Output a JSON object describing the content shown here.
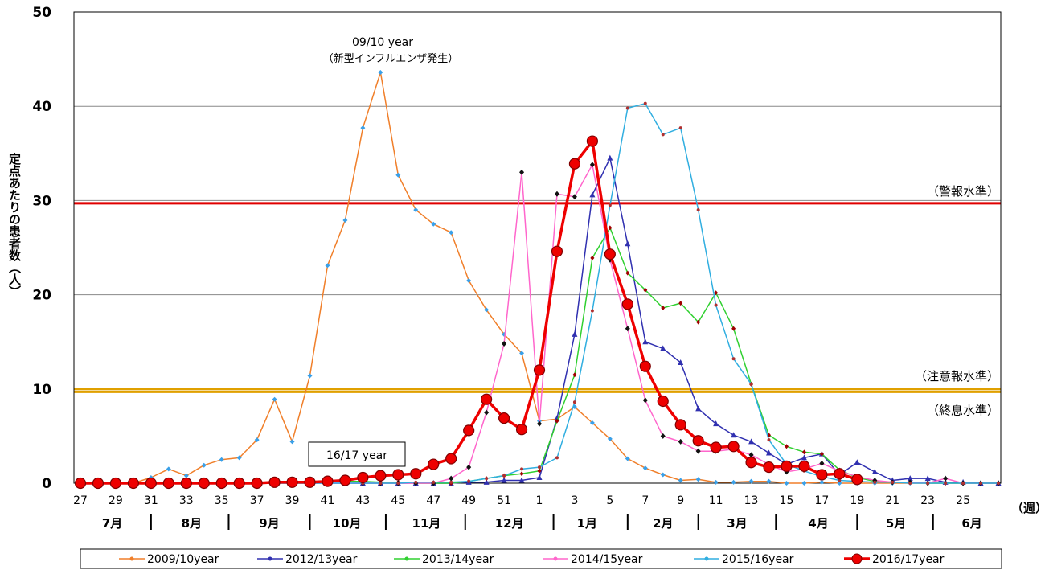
{
  "chart_data": {
    "type": "line",
    "ylabel": "定点あたりの患者数（人）",
    "xlabel": "",
    "x_unit_label": "（週）",
    "ylim": [
      0,
      50
    ],
    "yticks": [
      "0",
      "10",
      "20",
      "30",
      "40",
      "50"
    ],
    "x_ticks": [
      "27",
      "29",
      "31",
      "33",
      "35",
      "37",
      "39",
      "41",
      "43",
      "45",
      "47",
      "49",
      "51",
      "1",
      "3",
      "5",
      "7",
      "9",
      "11",
      "13",
      "15",
      "17",
      "19",
      "21",
      "23",
      "25"
    ],
    "months": [
      "7月",
      "8月",
      "9月",
      "10月",
      "11月",
      "12月",
      "1月",
      "2月",
      "3月",
      "4月",
      "5月",
      "6月"
    ],
    "grid": "horizontal",
    "legend_position": "bottom",
    "reference_lines": [
      {
        "label": "（警報水準）",
        "value": 29.7,
        "color": "#e00000"
      },
      {
        "label": "（注意報水準）",
        "value": 10.0,
        "color": "#e0a000"
      },
      {
        "label": "（終息水準）",
        "value": 9.7,
        "color": "#e0a000"
      }
    ],
    "annotations": [
      {
        "text": "09/10 year",
        "subtext": "（新型インフルエンザ発生）"
      },
      {
        "text": "16/17 year",
        "boxed": true
      }
    ],
    "series": [
      {
        "name": "2009/10year",
        "color": "#f07f2a",
        "values": [
          0,
          0,
          0,
          0,
          0.6,
          1.5,
          0.8,
          1.9,
          2.5,
          2.7,
          4.6,
          8.9,
          4.4,
          11.4,
          23.1,
          27.9,
          37.7,
          43.6,
          32.7,
          29.0,
          27.5,
          26.6,
          21.5,
          18.4,
          15.8,
          13.8,
          6.6,
          6.8,
          8.1,
          6.4,
          4.7,
          2.6,
          1.6,
          0.9,
          0.3,
          0.4,
          0.1,
          0.1,
          0.2,
          0.2,
          0,
          0,
          0.1,
          0,
          0,
          0,
          0,
          0,
          0,
          0,
          0,
          0,
          0
        ]
      },
      {
        "name": "2012/13year",
        "color": "#3030b0",
        "values": [
          0,
          0,
          0,
          0,
          0,
          0,
          0,
          0,
          0,
          0,
          0,
          0,
          0,
          0,
          0,
          0,
          0,
          0,
          0,
          0,
          0,
          0,
          0.1,
          0.1,
          0.3,
          0.3,
          0.6,
          6.9,
          15.8,
          30.6,
          34.5,
          25.4,
          15.0,
          14.3,
          12.8,
          7.9,
          6.3,
          5.1,
          4.4,
          3.2,
          2.0,
          2.7,
          3.1,
          0.9,
          2.2,
          1.2,
          0.3,
          0.5,
          0.5,
          0.1,
          0.1,
          0,
          0
        ]
      },
      {
        "name": "2013/14year",
        "color": "#30d030",
        "values": [
          0,
          0,
          0,
          0,
          0,
          0,
          0,
          0,
          0,
          0,
          0,
          0,
          0,
          0,
          0.3,
          0.2,
          0.2,
          0.1,
          0.1,
          0,
          0,
          0,
          0.2,
          0.5,
          0.8,
          1.0,
          1.3,
          6.6,
          11.5,
          23.9,
          27.1,
          22.3,
          20.5,
          18.6,
          19.1,
          17.1,
          20.2,
          16.4,
          10.5,
          5.1,
          3.9,
          3.3,
          3.1,
          1.4,
          0.6,
          0.2,
          0.1,
          0.1,
          0,
          0,
          0,
          0,
          0
        ]
      },
      {
        "name": "2014/15year",
        "color": "#ff66cc",
        "values": [
          0,
          0,
          0,
          0,
          0,
          0,
          0,
          0,
          0,
          0,
          0,
          0,
          0,
          0,
          0,
          0,
          0,
          0,
          0,
          0,
          0,
          0.5,
          1.7,
          7.5,
          14.8,
          33.0,
          6.3,
          30.7,
          30.4,
          33.8,
          23.7,
          16.4,
          8.8,
          5.0,
          4.4,
          3.4,
          3.4,
          3.6,
          3.0,
          2.0,
          1.2,
          1.5,
          2.1,
          1.3,
          0.7,
          0.3,
          0.1,
          0.1,
          0,
          0.5,
          0,
          0,
          0
        ]
      },
      {
        "name": "2015/16year",
        "color": "#30aee0",
        "values": [
          0,
          0,
          0,
          0,
          0,
          0,
          0,
          0,
          0,
          0,
          0,
          0,
          0,
          0,
          0,
          0,
          0,
          0,
          0,
          0.1,
          0.1,
          0.1,
          0.2,
          0.5,
          0.8,
          1.5,
          1.7,
          2.7,
          8.6,
          18.3,
          29.5,
          39.8,
          40.3,
          37.0,
          37.7,
          29.0,
          18.9,
          13.2,
          10.5,
          4.6,
          2.0,
          1.3,
          0.7,
          0.3,
          0.2,
          0.1,
          0.1,
          0,
          0,
          0,
          0,
          0,
          0
        ]
      },
      {
        "name": "2016/17year",
        "color": "#ee0000",
        "emphasis": true,
        "values": [
          0,
          0,
          0,
          0,
          0,
          0,
          0,
          0,
          0,
          0,
          0,
          0.1,
          0.1,
          0.1,
          0.2,
          0.3,
          0.6,
          0.8,
          0.9,
          1.0,
          2.0,
          2.6,
          5.6,
          8.9,
          6.9,
          5.7,
          12.0,
          24.6,
          33.9,
          36.3,
          24.3,
          19.0,
          12.4,
          8.7,
          6.2,
          4.5,
          3.8,
          3.9,
          2.2,
          1.7,
          1.8,
          1.8,
          0.9,
          1.0,
          0.4,
          null,
          null,
          null,
          null,
          null,
          null,
          null,
          null
        ]
      }
    ]
  }
}
